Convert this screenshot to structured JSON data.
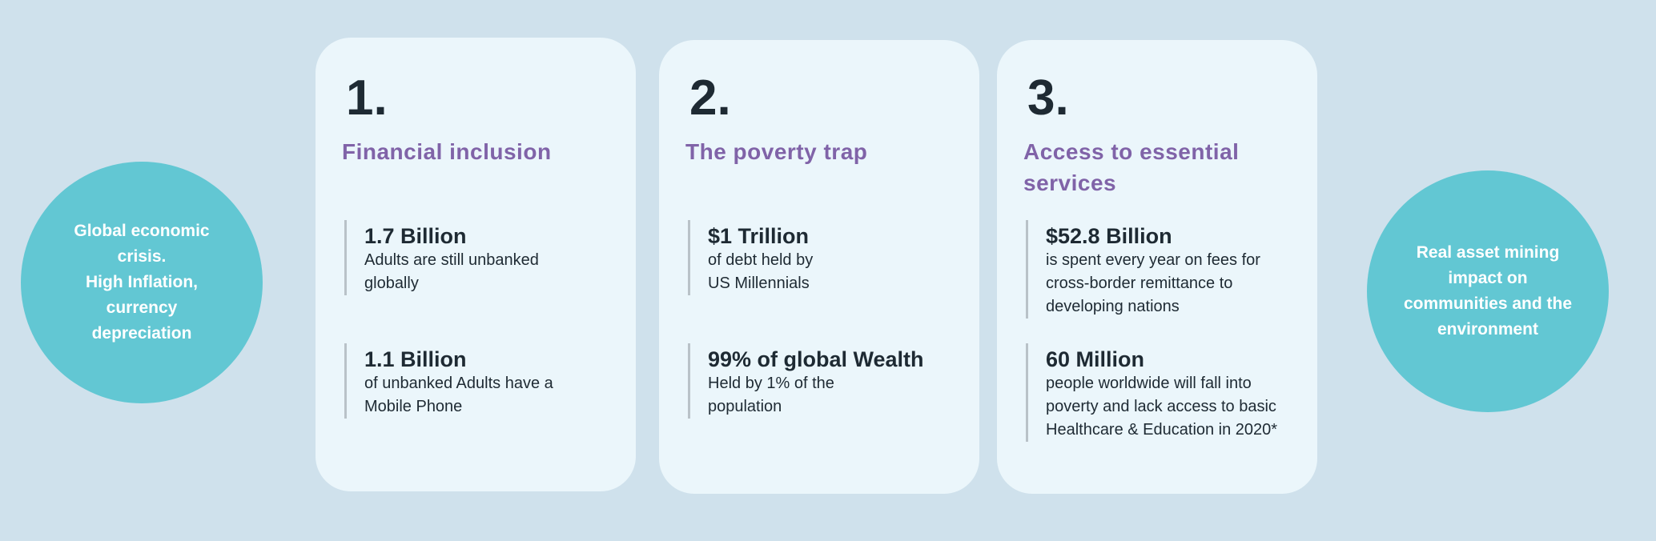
{
  "colors": {
    "background": "#cfe1ec",
    "card": "#ebf6fb",
    "circle": "#62c7d3",
    "heading": "#8063a8",
    "text": "#1e2a33"
  },
  "left_circle": {
    "text": "Global economic\ncrisis.\nHigh Inflation,\ncurrency\ndepreciation"
  },
  "right_circle": {
    "text": "Real asset  mining\nimpact on\ncommunities and the\nenvironment"
  },
  "cards": [
    {
      "number": "1.",
      "heading": "Financial inclusion",
      "stats": [
        {
          "title": "1.7 Billion",
          "body": "Adults are still unbanked\nglobally"
        },
        {
          "title": "1.1 Billion",
          "body": "of unbanked Adults have a\nMobile Phone"
        }
      ]
    },
    {
      "number": "2.",
      "heading": "The poverty trap",
      "stats": [
        {
          "title": "$1 Trillion",
          "body": "of debt held by\nUS Millennials"
        },
        {
          "title": "99% of global Wealth",
          "body": "Held by 1% of the\npopulation"
        }
      ]
    },
    {
      "number": "3.",
      "heading": "Access to essential services",
      "stats": [
        {
          "title": "$52.8 Billion",
          "body": "is spent every year on fees for\ncross-border remittance to\ndeveloping nations"
        },
        {
          "title": "60 Million",
          "body": "people worldwide will fall into\npoverty and lack access to basic\nHealthcare & Education in 2020*"
        }
      ]
    }
  ]
}
